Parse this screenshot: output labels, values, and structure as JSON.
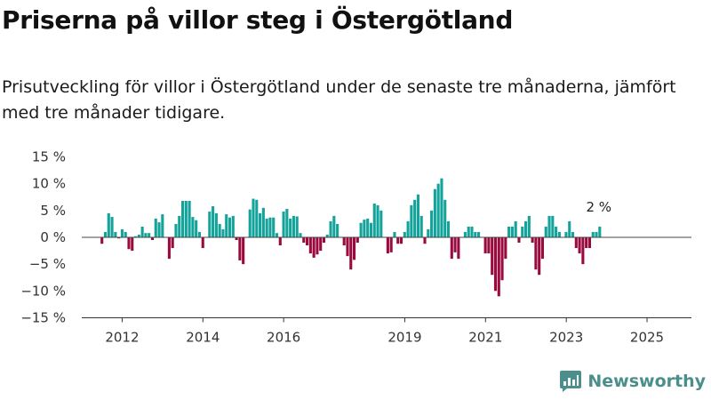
{
  "header": {
    "title": "Priserna på villor steg i Östergötland",
    "subtitle": "Prisutveckling för villor i Östergötland under de senaste tre månaderna, jämfört med tre månader tidigare."
  },
  "brand": {
    "name": "Newsworthy",
    "icon": "newsworthy-logo-icon",
    "color": "#4a8f8c"
  },
  "colors": {
    "positive": "#14a39a",
    "negative": "#990a3e",
    "axis": "#333333"
  },
  "chart_data": {
    "type": "bar",
    "x_start_year": 2011.5,
    "x_step_years": 0.0833,
    "values": [
      -1.2,
      1,
      4.5,
      3.8,
      1,
      -0.2,
      1.5,
      1,
      -2.2,
      -2.5,
      0.2,
      0.5,
      2,
      0.8,
      0.8,
      -0.5,
      3.5,
      2.8,
      4.3,
      0,
      -4,
      -2,
      2.5,
      4,
      6.8,
      6.8,
      6.8,
      3.8,
      3.2,
      1,
      -2,
      0,
      4.8,
      5.8,
      4.5,
      2.5,
      1.5,
      4.3,
      3.7,
      4,
      -0.5,
      -4.3,
      -5,
      0,
      5.2,
      7.2,
      7,
      4.5,
      5.5,
      3.5,
      3.7,
      3.7,
      0.8,
      -1.5,
      4.8,
      5.3,
      3.5,
      4,
      3.9,
      0.8,
      -1,
      -1.5,
      -3,
      -3.8,
      -3.2,
      -2.5,
      -1,
      0.5,
      3,
      4,
      2.5,
      0,
      -1.5,
      -3.5,
      -6,
      -4.2,
      -1,
      2.7,
      3.3,
      3.5,
      2.7,
      6.3,
      6,
      5,
      0,
      -3,
      -2.8,
      1,
      -1.2,
      -1.2,
      1,
      3,
      6,
      7,
      8,
      4,
      -1.2,
      1.5,
      5,
      9,
      10,
      11,
      7,
      3,
      -4,
      -2.8,
      -4,
      0,
      1,
      2,
      2,
      1,
      1,
      0,
      -3,
      -3,
      -7,
      -10,
      -11,
      -8,
      -4,
      2,
      2,
      3,
      -1,
      2,
      3,
      4,
      -1,
      -6,
      -7,
      -4,
      2,
      4,
      4,
      2,
      1,
      0,
      1,
      3,
      1,
      -2,
      -3,
      -5,
      -2,
      -2,
      1,
      1,
      2
    ],
    "last_value_label": "2 %",
    "x_ticks": [
      "2012",
      "2014",
      "2016",
      "2019",
      "2021",
      "2023",
      "2025"
    ],
    "x_tick_years": [
      2012,
      2014,
      2016,
      2019,
      2021,
      2023,
      2025
    ],
    "y_ticks": [
      "15 %",
      "10 %",
      "5 %",
      "0 %",
      "−5 %",
      "−10 %",
      "−15 %"
    ],
    "y_tick_values": [
      15,
      10,
      5,
      0,
      -5,
      -10,
      -15
    ],
    "ylim": [
      -15,
      15
    ],
    "xlim": [
      2011.0,
      2026.1
    ],
    "grid": false,
    "xlabel": "",
    "ylabel": ""
  }
}
